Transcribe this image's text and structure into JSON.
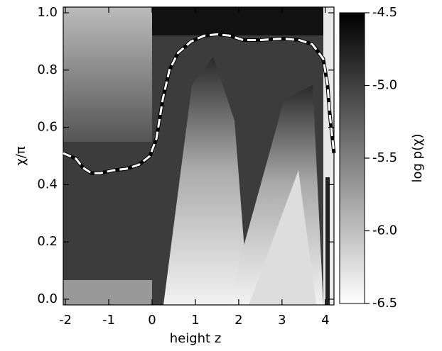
{
  "chart_data": {
    "type": "line",
    "xlabel": "height z",
    "ylabel": "χ/π",
    "colorbar_label": "log p(χ)",
    "x": [
      -2.05,
      -1.9,
      -1.75,
      -1.6,
      -1.4,
      -1.2,
      -0.9,
      -0.6,
      -0.3,
      -0.05,
      0.1,
      0.25,
      0.4,
      0.6,
      0.9,
      1.2,
      1.5,
      1.8,
      2.1,
      2.5,
      3.0,
      3.4,
      3.7,
      3.95,
      4.05,
      4.1,
      4.2
    ],
    "series": [
      {
        "values": [
          0.51,
          0.5,
          0.49,
          0.46,
          0.44,
          0.44,
          0.45,
          0.455,
          0.47,
          0.5,
          0.56,
          0.7,
          0.8,
          0.86,
          0.9,
          0.92,
          0.925,
          0.92,
          0.905,
          0.905,
          0.91,
          0.905,
          0.89,
          0.84,
          0.75,
          0.65,
          0.51
        ]
      }
    ],
    "xlim": [
      -2.05,
      4.2
    ],
    "xticks": [
      -2,
      -1,
      0,
      1,
      2,
      3,
      4
    ],
    "ylim": [
      -0.02,
      1.02
    ],
    "yticks": [
      0.0,
      0.2,
      0.4,
      0.6,
      0.8,
      1.0
    ],
    "clim": [
      -6.5,
      -4.5
    ],
    "cticks": [
      -4.5,
      -5.0,
      -5.5,
      -6.0,
      -6.5
    ]
  }
}
